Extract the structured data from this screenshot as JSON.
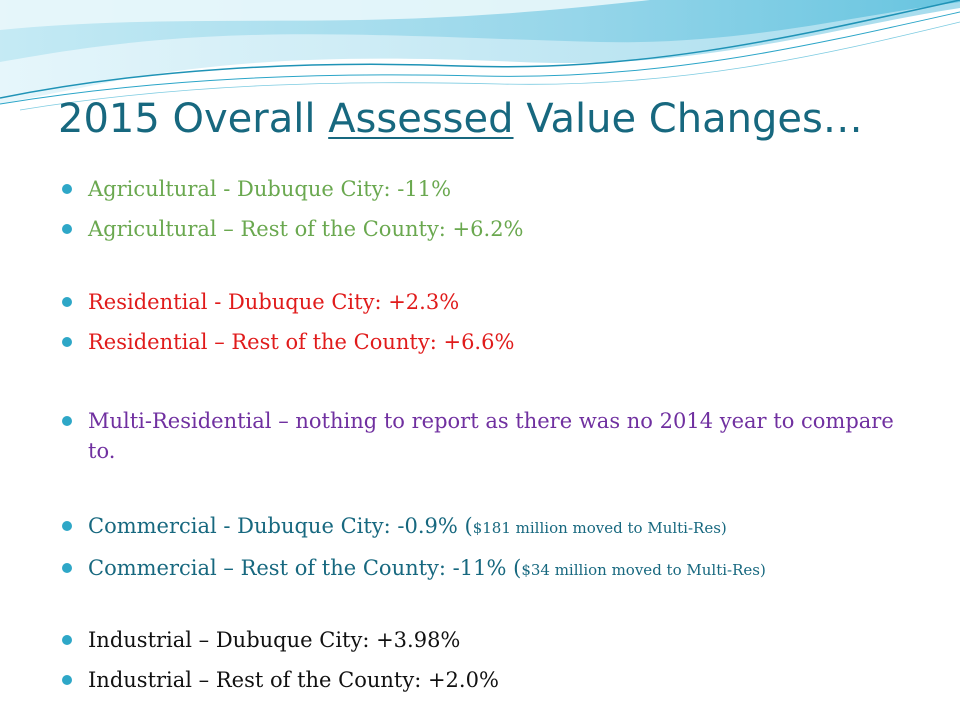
{
  "slide": {
    "title_prefix": "2015 Overall ",
    "title_underlined": "Assessed",
    "title_suffix": " Value Changes…",
    "items": [
      {
        "text": "Agricultural - Dubuque City: -11%",
        "color": "#6aa84f"
      },
      {
        "text": "Agricultural – Rest of the County: +6.2%",
        "color": "#6aa84f"
      },
      {
        "text": "Residential - Dubuque City: +2.3%",
        "color": "#e01b1b"
      },
      {
        "text": "Residential – Rest of the County: +6.6%",
        "color": "#e01b1b"
      },
      {
        "text": "Multi-Residential  – nothing to report as there was no 2014 year to compare to.",
        "color": "#7030a0"
      },
      {
        "text": "Commercial - Dubuque City: -0.9%     (",
        "note": "$181 million moved to Multi-Res)",
        "color": "#17687f"
      },
      {
        "text": "Commercial – Rest of the County: -11%   (",
        "note": "$34 million moved to Multi-Res)",
        "color": "#17687f"
      },
      {
        "text": "Industrial – Dubuque City: +3.98%",
        "color": "#111111"
      },
      {
        "text": "Industrial – Rest of the County: +2.0%",
        "color": "#111111"
      }
    ]
  }
}
